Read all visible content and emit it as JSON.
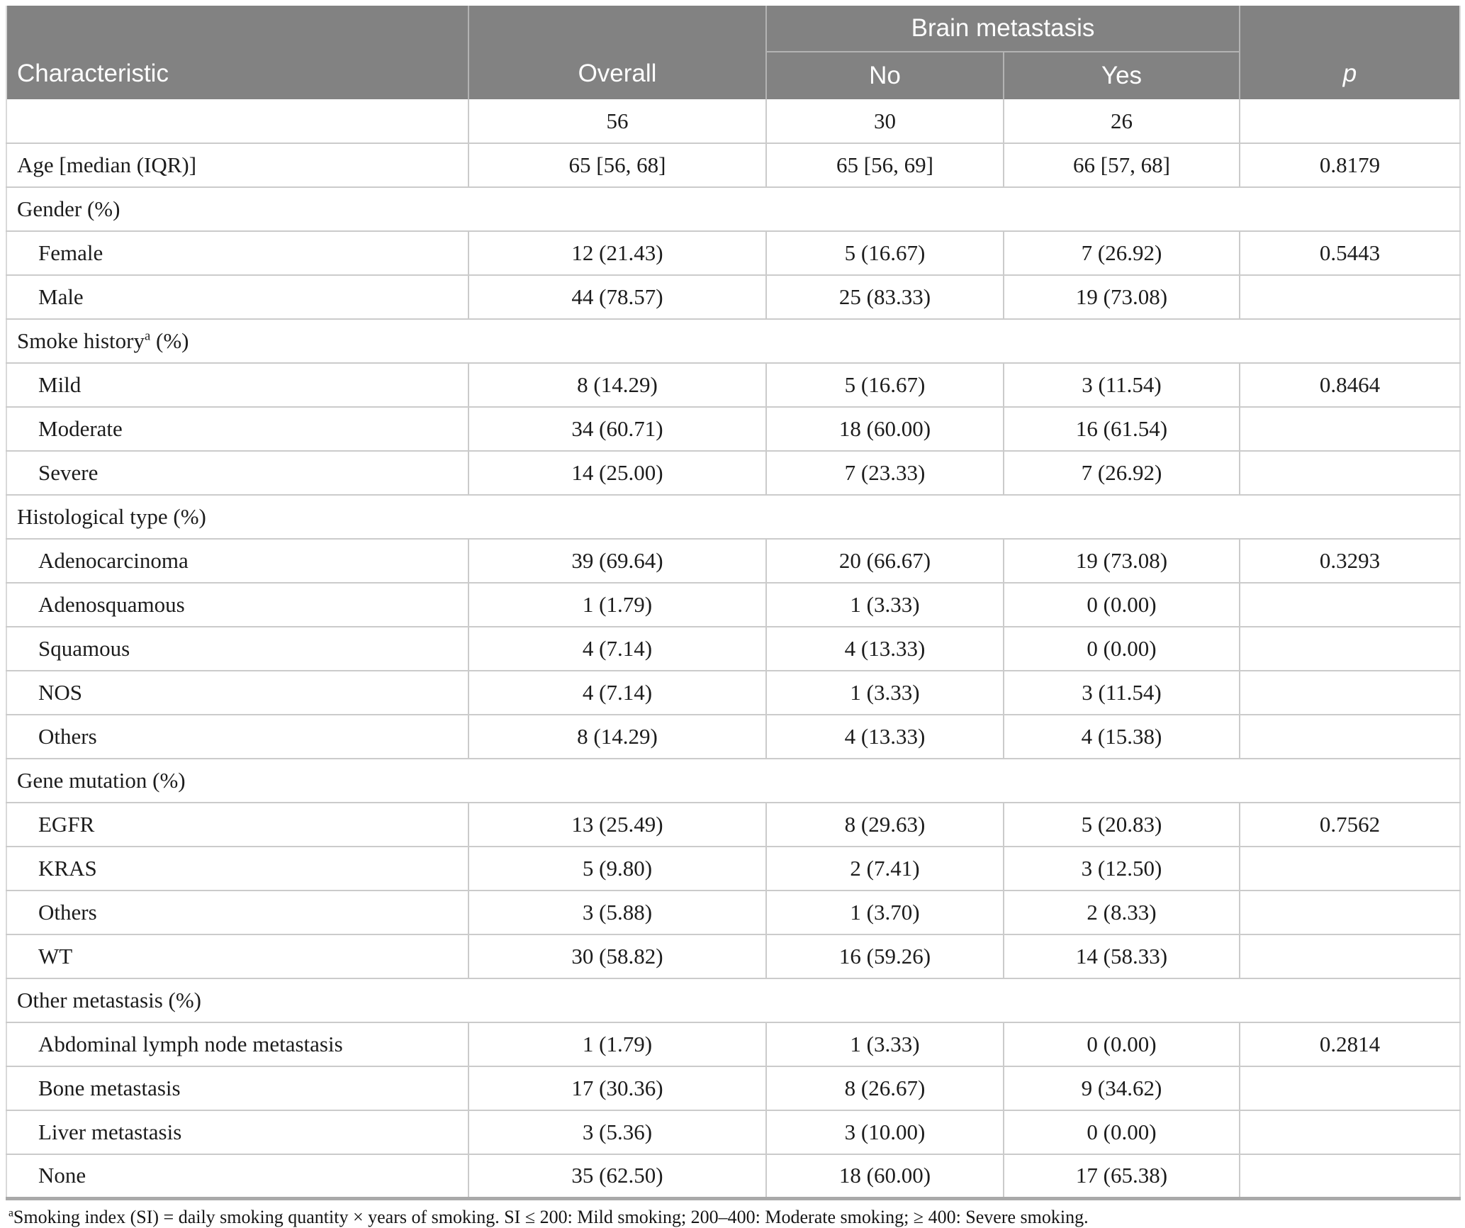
{
  "colors": {
    "header_bg": "#828282",
    "header_text": "#ffffff",
    "header_separator": "#b3b3b3",
    "row_separator": "#cbcbcb",
    "bottom_border": "#a9a9a9",
    "body_text": "#1c1c1c"
  },
  "header": {
    "characteristic": "Characteristic",
    "overall": "Overall",
    "group": "Brain metastasis",
    "no": "No",
    "yes": "Yes",
    "p": "p"
  },
  "rows": [
    {
      "type": "data",
      "label": "",
      "indent": false,
      "overall": "56",
      "no": "30",
      "yes": "26",
      "p": ""
    },
    {
      "type": "data",
      "label": "Age [median (IQR)]",
      "indent": false,
      "overall": "65 [56, 68]",
      "no": "65 [56, 69]",
      "yes": "66 [57, 68]",
      "p": "0.8179"
    },
    {
      "type": "section",
      "label": "Gender (%)",
      "sup": "",
      "label_after": ""
    },
    {
      "type": "data",
      "label": "Female",
      "indent": true,
      "overall": "12 (21.43)",
      "no": "5 (16.67)",
      "yes": "7 (26.92)",
      "p": "0.5443"
    },
    {
      "type": "data",
      "label": "Male",
      "indent": true,
      "overall": "44 (78.57)",
      "no": "25 (83.33)",
      "yes": "19 (73.08)",
      "p": ""
    },
    {
      "type": "section",
      "label": "Smoke history",
      "sup": "a",
      "label_after": " (%)"
    },
    {
      "type": "data",
      "label": "Mild",
      "indent": true,
      "overall": "8 (14.29)",
      "no": "5 (16.67)",
      "yes": "3 (11.54)",
      "p": "0.8464"
    },
    {
      "type": "data",
      "label": "Moderate",
      "indent": true,
      "overall": "34 (60.71)",
      "no": "18 (60.00)",
      "yes": "16 (61.54)",
      "p": ""
    },
    {
      "type": "data",
      "label": "Severe",
      "indent": true,
      "overall": "14 (25.00)",
      "no": "7 (23.33)",
      "yes": "7 (26.92)",
      "p": ""
    },
    {
      "type": "section",
      "label": "Histological type (%)",
      "sup": "",
      "label_after": ""
    },
    {
      "type": "data",
      "label": "Adenocarcinoma",
      "indent": true,
      "overall": "39 (69.64)",
      "no": "20 (66.67)",
      "yes": "19 (73.08)",
      "p": "0.3293"
    },
    {
      "type": "data",
      "label": "Adenosquamous",
      "indent": true,
      "overall": "1 (1.79)",
      "no": "1 (3.33)",
      "yes": "0 (0.00)",
      "p": ""
    },
    {
      "type": "data",
      "label": "Squamous",
      "indent": true,
      "overall": "4 (7.14)",
      "no": "4 (13.33)",
      "yes": "0 (0.00)",
      "p": ""
    },
    {
      "type": "data",
      "label": "NOS",
      "indent": true,
      "overall": "4 (7.14)",
      "no": "1 (3.33)",
      "yes": "3 (11.54)",
      "p": ""
    },
    {
      "type": "data",
      "label": "Others",
      "indent": true,
      "overall": "8 (14.29)",
      "no": "4 (13.33)",
      "yes": "4 (15.38)",
      "p": ""
    },
    {
      "type": "section",
      "label": "Gene mutation (%)",
      "sup": "",
      "label_after": ""
    },
    {
      "type": "data",
      "label": "EGFR",
      "indent": true,
      "overall": "13 (25.49)",
      "no": "8 (29.63)",
      "yes": "5 (20.83)",
      "p": "0.7562"
    },
    {
      "type": "data",
      "label": "KRAS",
      "indent": true,
      "overall": "5 (9.80)",
      "no": "2 (7.41)",
      "yes": "3 (12.50)",
      "p": ""
    },
    {
      "type": "data",
      "label": "Others",
      "indent": true,
      "overall": "3 (5.88)",
      "no": "1 (3.70)",
      "yes": "2 (8.33)",
      "p": ""
    },
    {
      "type": "data",
      "label": "WT",
      "indent": true,
      "overall": "30 (58.82)",
      "no": "16 (59.26)",
      "yes": "14 (58.33)",
      "p": ""
    },
    {
      "type": "section",
      "label": "Other metastasis (%)",
      "sup": "",
      "label_after": ""
    },
    {
      "type": "data",
      "label": "Abdominal lymph node metastasis",
      "indent": true,
      "overall": "1 (1.79)",
      "no": "1 (3.33)",
      "yes": "0 (0.00)",
      "p": "0.2814"
    },
    {
      "type": "data",
      "label": "Bone metastasis",
      "indent": true,
      "overall": "17 (30.36)",
      "no": "8 (26.67)",
      "yes": "9 (34.62)",
      "p": ""
    },
    {
      "type": "data",
      "label": "Liver metastasis",
      "indent": true,
      "overall": "3 (5.36)",
      "no": "3 (10.00)",
      "yes": "0 (0.00)",
      "p": ""
    },
    {
      "type": "data",
      "label": "None",
      "indent": true,
      "overall": "35 (62.50)",
      "no": "18 (60.00)",
      "yes": "17 (65.38)",
      "p": ""
    }
  ],
  "footnote": {
    "sup": "a",
    "text": "Smoking index (SI) = daily smoking quantity × years of smoking. SI ≤ 200: Mild smoking; 200–400: Moderate smoking; ≥ 400: Severe smoking."
  }
}
